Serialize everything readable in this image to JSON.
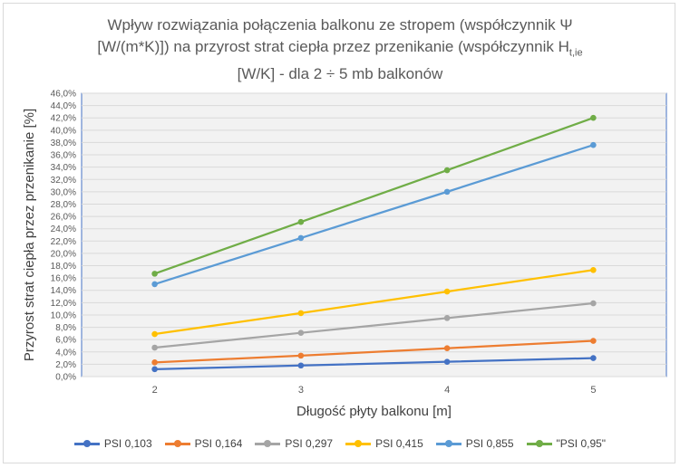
{
  "chart_data": {
    "type": "line",
    "title_lines": [
      "Wpływ rozwiązania połączenia balkonu ze stropem (współczynnik Ψ",
      "[W/(m*K)]) na przyrost strat ciepła przez przenikanie (współczynnik H",
      "[W/K] - dla 2 ÷ 5 mb balkonów"
    ],
    "title_subscript": "t,ie",
    "xlabel": "Długość płyty balkonu [m]",
    "ylabel": "Przyrost strat ciepła przez przenikanie [%]",
    "x": [
      2,
      3,
      4,
      5
    ],
    "x_tick_labels": [
      "2",
      "3",
      "4",
      "5"
    ],
    "ylim": [
      0,
      46
    ],
    "y_tick_labels": [
      "0,0%",
      "2,0%",
      "4,0%",
      "6,0%",
      "8,0%",
      "10,0%",
      "12,0%",
      "14,0%",
      "16,0%",
      "18,0%",
      "20,0%",
      "22,0%",
      "24,0%",
      "26,0%",
      "28,0%",
      "30,0%",
      "32,0%",
      "34,0%",
      "36,0%",
      "38,0%",
      "40,0%",
      "42,0%",
      "44,0%",
      "46,0%"
    ],
    "grid": true,
    "legend_position": "bottom",
    "series": [
      {
        "name": "PSI 0,103",
        "color": "#4472c4",
        "values": [
          1.2,
          1.8,
          2.4,
          3.0
        ]
      },
      {
        "name": "PSI 0,164",
        "color": "#ed7d31",
        "values": [
          2.3,
          3.4,
          4.6,
          5.8
        ]
      },
      {
        "name": "PSI 0,297",
        "color": "#a5a5a5",
        "values": [
          4.7,
          7.1,
          9.5,
          11.9
        ]
      },
      {
        "name": "PSI 0,415",
        "color": "#ffc000",
        "values": [
          6.9,
          10.3,
          13.8,
          17.3
        ]
      },
      {
        "name": "PSI 0,855",
        "color": "#5b9bd5",
        "values": [
          15.0,
          22.5,
          30.0,
          37.6
        ]
      },
      {
        "name": "\"PSI 0,95\"",
        "color": "#70ad47",
        "values": [
          16.7,
          25.1,
          33.5,
          42.0
        ]
      }
    ]
  }
}
